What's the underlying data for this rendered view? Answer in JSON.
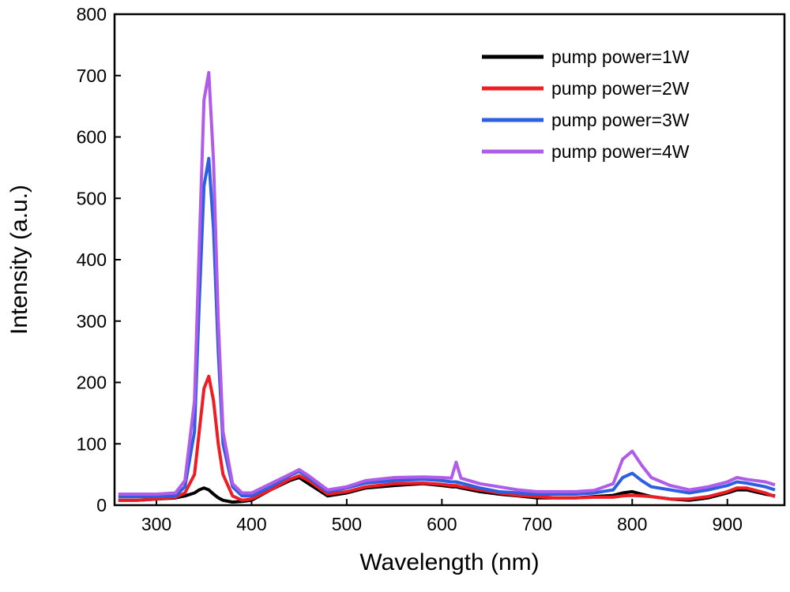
{
  "chart_data": {
    "type": "line",
    "xlabel": "Wavelength (nm)",
    "ylabel": "Intensity (a.u.)",
    "x": [
      260,
      280,
      300,
      320,
      330,
      340,
      345,
      350,
      355,
      360,
      365,
      370,
      380,
      390,
      400,
      420,
      440,
      450,
      460,
      480,
      500,
      520,
      550,
      580,
      600,
      610,
      615,
      620,
      640,
      660,
      680,
      700,
      720,
      740,
      760,
      780,
      790,
      800,
      810,
      820,
      840,
      860,
      880,
      900,
      910,
      920,
      940,
      950
    ],
    "series": [
      {
        "name": "pump power=1W",
        "color": "#000000",
        "values": [
          8,
          8,
          10,
          12,
          15,
          20,
          25,
          28,
          25,
          18,
          12,
          8,
          5,
          6,
          8,
          25,
          40,
          45,
          35,
          15,
          20,
          28,
          32,
          35,
          32,
          30,
          30,
          28,
          22,
          18,
          15,
          12,
          12,
          12,
          14,
          16,
          20,
          22,
          18,
          14,
          10,
          8,
          12,
          20,
          25,
          25,
          18,
          15
        ]
      },
      {
        "name": "pump power=2W",
        "color": "#ee1c25",
        "values": [
          8,
          8,
          10,
          13,
          20,
          50,
          120,
          190,
          210,
          170,
          100,
          50,
          15,
          8,
          10,
          25,
          42,
          48,
          40,
          18,
          22,
          30,
          35,
          36,
          34,
          32,
          32,
          30,
          25,
          20,
          16,
          14,
          12,
          12,
          13,
          13,
          15,
          16,
          15,
          14,
          10,
          10,
          14,
          22,
          28,
          28,
          20,
          14
        ]
      },
      {
        "name": "pump power=3W",
        "color": "#2d5fe0",
        "values": [
          14,
          14,
          14,
          15,
          30,
          120,
          330,
          520,
          565,
          450,
          250,
          100,
          30,
          15,
          15,
          30,
          48,
          55,
          45,
          22,
          28,
          36,
          40,
          42,
          40,
          38,
          38,
          36,
          28,
          22,
          20,
          18,
          18,
          18,
          20,
          25,
          45,
          52,
          40,
          30,
          25,
          20,
          25,
          32,
          38,
          36,
          30,
          25
        ]
      },
      {
        "name": "pump power=4W",
        "color": "#b05ce8",
        "values": [
          18,
          18,
          18,
          20,
          40,
          170,
          420,
          660,
          705,
          560,
          300,
          120,
          35,
          20,
          20,
          35,
          50,
          58,
          48,
          25,
          30,
          40,
          45,
          46,
          45,
          44,
          70,
          44,
          35,
          30,
          25,
          22,
          22,
          22,
          24,
          35,
          75,
          88,
          65,
          45,
          32,
          25,
          30,
          38,
          45,
          42,
          38,
          33
        ]
      }
    ],
    "xlim": [
      256,
      960
    ],
    "ylim": [
      0,
      800
    ],
    "xticks": [
      300,
      400,
      500,
      600,
      700,
      800,
      900
    ],
    "yticks": [
      0,
      100,
      200,
      300,
      400,
      500,
      600,
      700,
      800
    ],
    "legend": "upper right"
  }
}
